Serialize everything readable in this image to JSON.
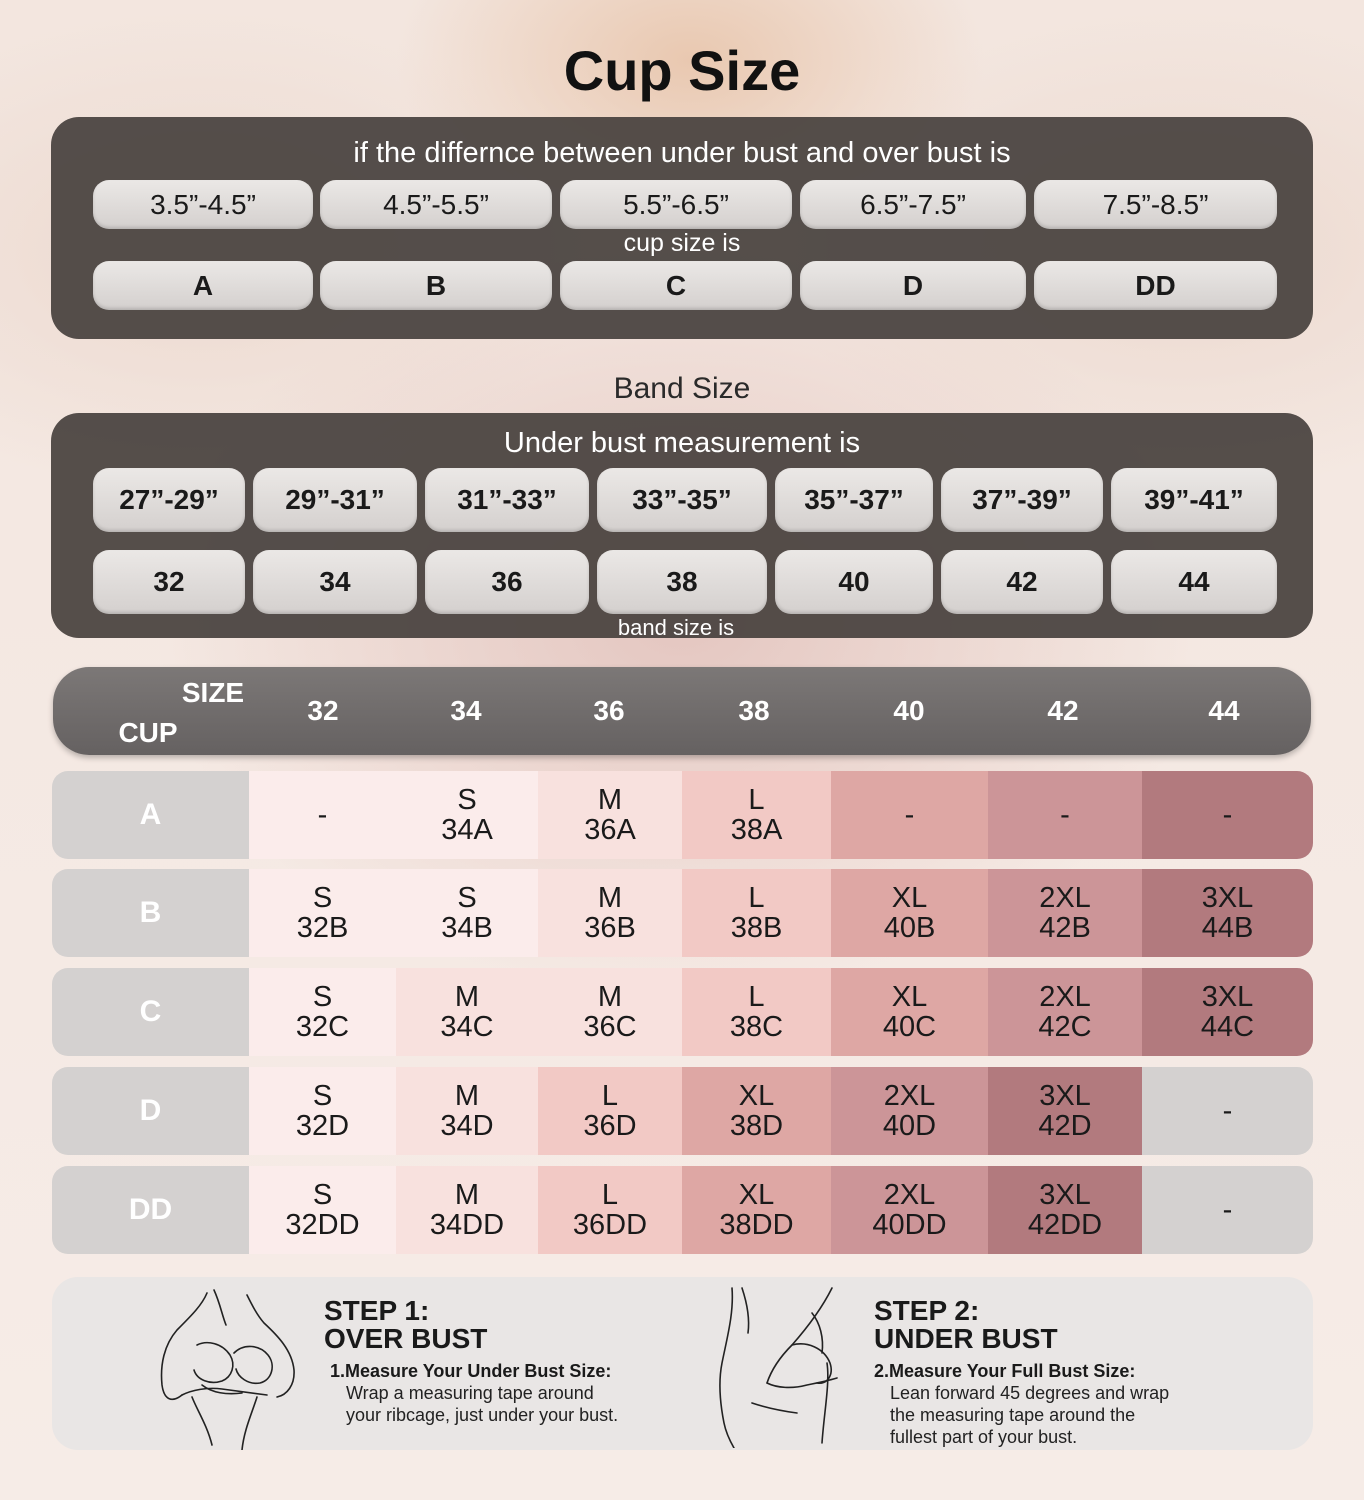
{
  "title": "Cup Size",
  "cup_panel": {
    "intro": "if the differnce between under bust and over bust is",
    "differences": [
      "3.5”-4.5”",
      "4.5”-5.5”",
      "5.5”-6.5”",
      "6.5”-7.5”",
      "7.5”-8.5”"
    ],
    "middle_label": "cup size is",
    "cups": [
      "A",
      "B",
      "C",
      "D",
      "DD"
    ]
  },
  "band_title": "Band Size",
  "band_panel": {
    "intro": "Under bust measurement is",
    "measurements": [
      "27”-29”",
      "29”-31”",
      "31”-33”",
      "33”-35”",
      "35”-37”",
      "37”-39”",
      "39”-41”"
    ],
    "bands": [
      "32",
      "34",
      "36",
      "38",
      "40",
      "42",
      "44"
    ],
    "footer": "band size is"
  },
  "size_table": {
    "size_label": "SIZE",
    "cup_label": "CUP",
    "columns": [
      "32",
      "34",
      "36",
      "38",
      "40",
      "42",
      "44"
    ],
    "rows": [
      {
        "cup": "A",
        "cells": [
          [
            "-"
          ],
          [
            "S",
            "34A"
          ],
          [
            "M",
            "36A"
          ],
          [
            "L",
            "38A"
          ],
          [
            "-"
          ],
          [
            "-"
          ],
          [
            "-"
          ]
        ]
      },
      {
        "cup": "B",
        "cells": [
          [
            "S",
            "32B"
          ],
          [
            "S",
            "34B"
          ],
          [
            "M",
            "36B"
          ],
          [
            "L",
            "38B"
          ],
          [
            "XL",
            "40B"
          ],
          [
            "2XL",
            "42B"
          ],
          [
            "3XL",
            "44B"
          ]
        ]
      },
      {
        "cup": "C",
        "cells": [
          [
            "S",
            "32C"
          ],
          [
            "M",
            "34C"
          ],
          [
            "M",
            "36C"
          ],
          [
            "L",
            "38C"
          ],
          [
            "XL",
            "40C"
          ],
          [
            "2XL",
            "42C"
          ],
          [
            "3XL",
            "44C"
          ]
        ]
      },
      {
        "cup": "D",
        "cells": [
          [
            "S",
            "32D"
          ],
          [
            "M",
            "34D"
          ],
          [
            "L",
            "36D"
          ],
          [
            "XL",
            "38D"
          ],
          [
            "2XL",
            "40D"
          ],
          [
            "3XL",
            "42D"
          ],
          [
            "-"
          ]
        ]
      },
      {
        "cup": "DD",
        "cells": [
          [
            "S",
            "32DD"
          ],
          [
            "M",
            "34DD"
          ],
          [
            "L",
            "36DD"
          ],
          [
            "XL",
            "38DD"
          ],
          [
            "2XL",
            "40DD"
          ],
          [
            "3XL",
            "42DD"
          ],
          [
            "-"
          ]
        ]
      }
    ],
    "colors": {
      "blank": "#d4d1d0",
      "palette": [
        "#fbeceb",
        "#f8e1de",
        "#f2c9c5",
        "#e9b4b0",
        "#dea7a4",
        "#cc9598",
        "#b27a7e"
      ]
    },
    "cell_color_index": [
      [
        0,
        0,
        1,
        2,
        4,
        5,
        6
      ],
      [
        0,
        0,
        1,
        2,
        4,
        5,
        6
      ],
      [
        0,
        1,
        1,
        2,
        4,
        5,
        6
      ],
      [
        0,
        1,
        2,
        4,
        5,
        6,
        -1
      ],
      [
        0,
        1,
        2,
        4,
        5,
        6,
        -1
      ]
    ]
  },
  "steps": [
    {
      "title_line1": "STEP 1:",
      "title_line2": "OVER BUST",
      "subtitle": "1.Measure Your Under Bust Size:",
      "body_lines": [
        "Wrap a measuring tape around",
        "your ribcage, just under your bust."
      ],
      "illustration": "over-bust-figure-icon"
    },
    {
      "title_line1": "STEP 2:",
      "title_line2": "UNDER BUST",
      "subtitle": "2.Measure Your Full Bust Size:",
      "body_lines": [
        "Lean forward 45 degrees and wrap",
        "the measuring tape around the",
        "fullest part of your bust."
      ],
      "illustration": "under-bust-figure-icon"
    }
  ]
}
